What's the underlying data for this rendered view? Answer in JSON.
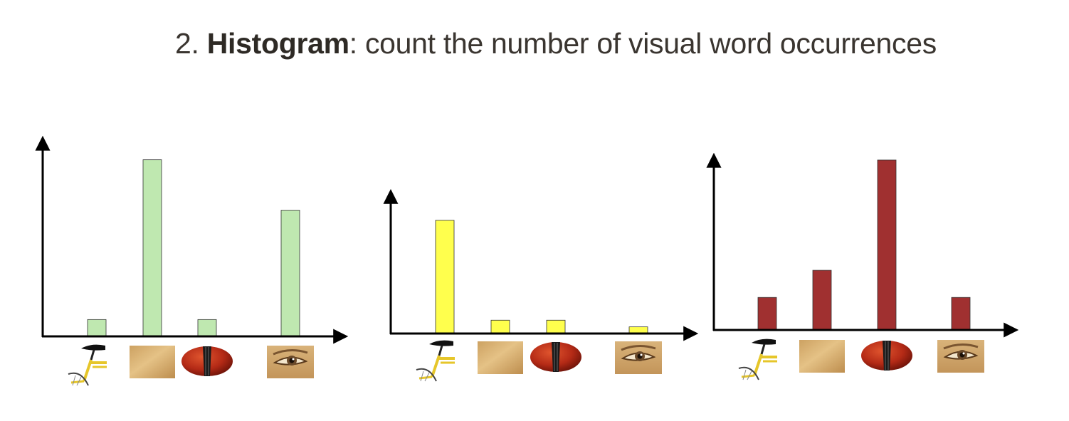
{
  "title": {
    "number": "2. ",
    "bold": "Histogram",
    "rest": ": count the number of visual word occurrences"
  },
  "chart_data": [
    {
      "type": "bar",
      "categories": [
        "bicycle-seat",
        "skin-patch",
        "violin-body",
        "eye"
      ],
      "values": [
        1,
        10.5,
        1,
        7.5
      ],
      "ylim": [
        0,
        11.5
      ],
      "color": "#bfe8b0",
      "xlabel": "",
      "ylabel": ""
    },
    {
      "type": "bar",
      "categories": [
        "bicycle-seat",
        "skin-patch",
        "violin-body",
        "eye"
      ],
      "values": [
        8.5,
        1,
        1,
        0.5
      ],
      "ylim": [
        0,
        10.3
      ],
      "color": "#ffff4d",
      "xlabel": "",
      "ylabel": ""
    },
    {
      "type": "bar",
      "categories": [
        "bicycle-seat",
        "skin-patch",
        "violin-body",
        "eye"
      ],
      "values": [
        1.8,
        3.3,
        9.4,
        1.8
      ],
      "ylim": [
        0,
        9.4
      ],
      "color": "#a03030",
      "xlabel": "",
      "ylabel": ""
    }
  ]
}
